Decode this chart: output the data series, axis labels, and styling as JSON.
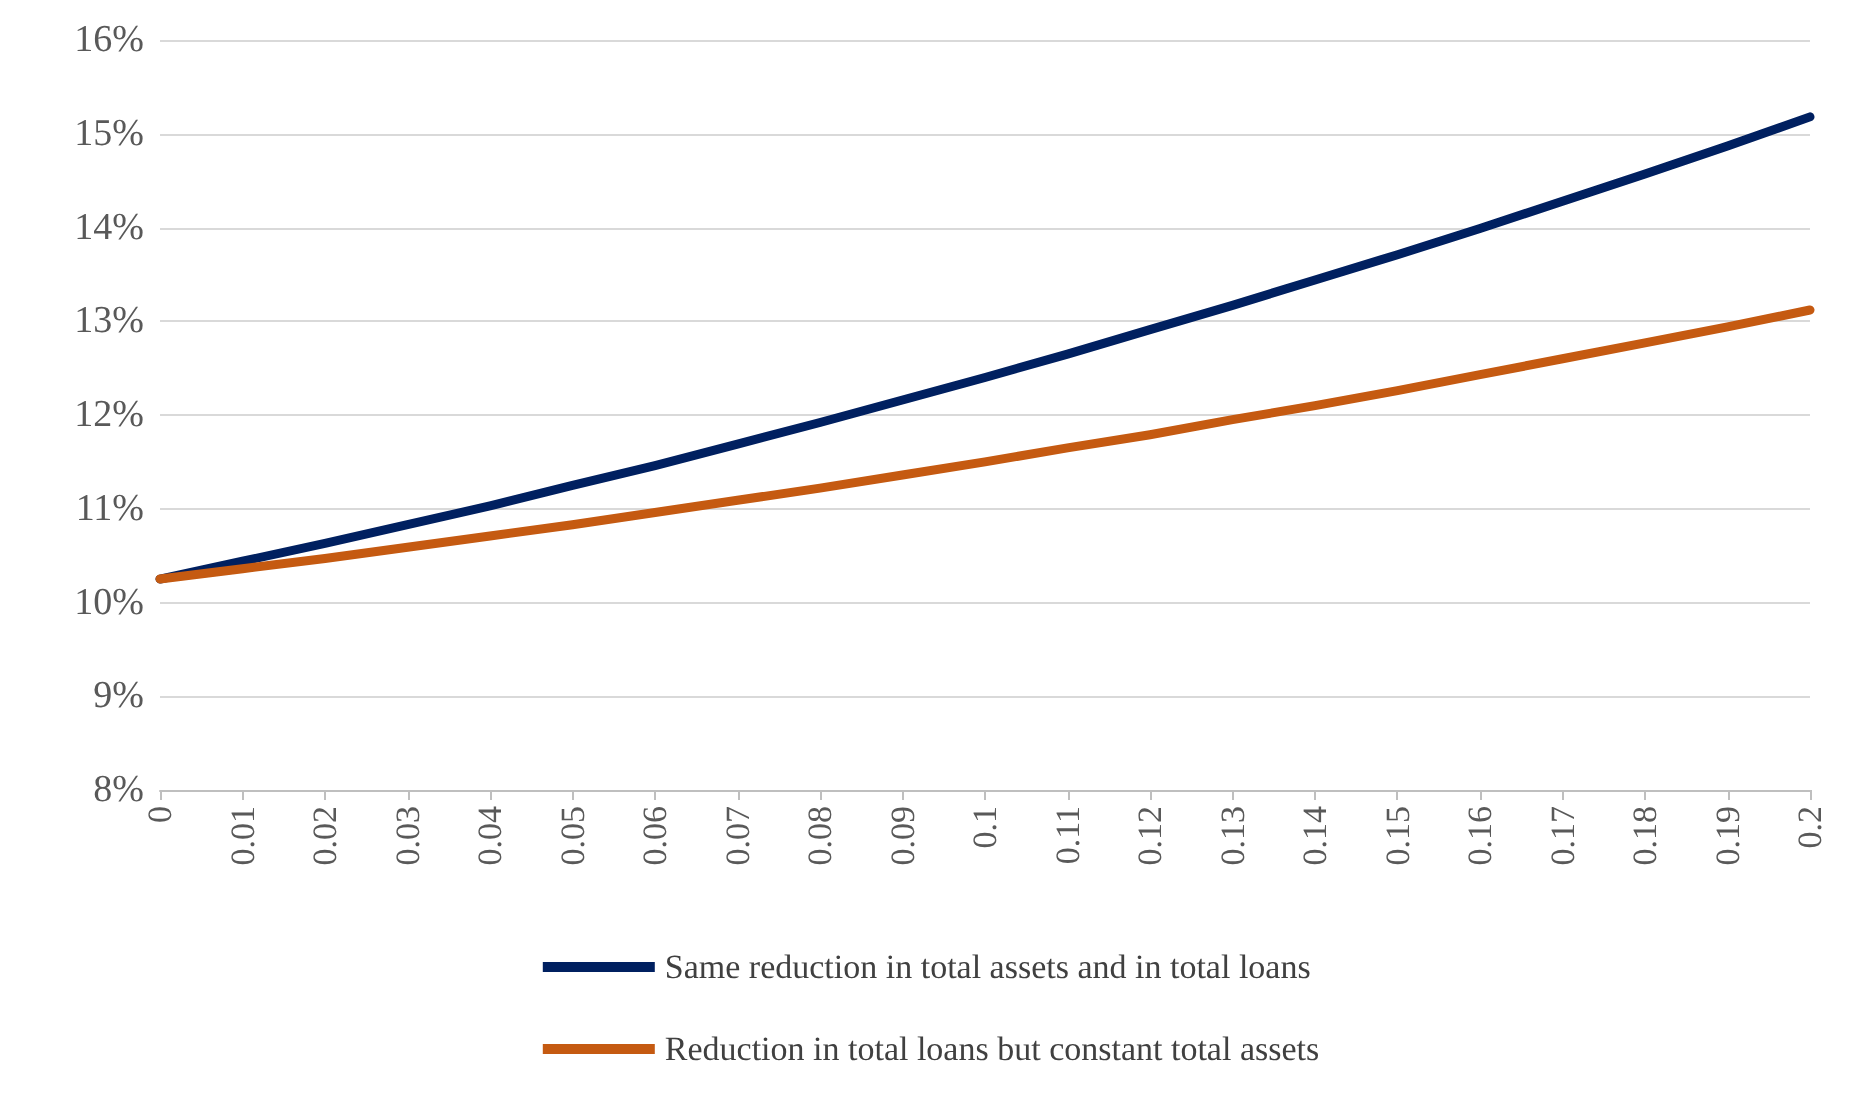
{
  "chart_data": {
    "type": "line",
    "x": [
      0,
      0.01,
      0.02,
      0.03,
      0.04,
      0.05,
      0.06,
      0.07,
      0.08,
      0.09,
      0.1,
      0.11,
      0.12,
      0.13,
      0.14,
      0.15,
      0.16,
      0.17,
      0.18,
      0.19,
      0.2
    ],
    "series": [
      {
        "name": "Same reduction in total assets and in total loans",
        "color": "#002060",
        "values": [
          10.25,
          10.44,
          10.63,
          10.83,
          11.03,
          11.25,
          11.46,
          11.69,
          11.92,
          12.16,
          12.4,
          12.65,
          12.91,
          13.17,
          13.44,
          13.71,
          13.99,
          14.28,
          14.57,
          14.87,
          15.18
        ]
      },
      {
        "name": "Reduction in total loans but constant total assets",
        "color": "#c55a11",
        "values": [
          10.25,
          10.36,
          10.47,
          10.59,
          10.71,
          10.83,
          10.96,
          11.09,
          11.22,
          11.36,
          11.5,
          11.65,
          11.79,
          11.95,
          12.1,
          12.26,
          12.43,
          12.6,
          12.77,
          12.94,
          13.12
        ]
      }
    ],
    "xlim": [
      0,
      0.2
    ],
    "xticks": [
      0,
      0.01,
      0.02,
      0.03,
      0.04,
      0.05,
      0.06,
      0.07,
      0.08,
      0.09,
      0.1,
      0.11,
      0.12,
      0.13,
      0.14,
      0.15,
      0.16,
      0.17,
      0.18,
      0.19,
      0.2
    ],
    "ylim": [
      8,
      16
    ],
    "yticks": [
      {
        "value": 8,
        "label": "8%"
      },
      {
        "value": 9,
        "label": "9%"
      },
      {
        "value": 10,
        "label": "10%"
      },
      {
        "value": 11,
        "label": "11%"
      },
      {
        "value": 12,
        "label": "12%"
      },
      {
        "value": 13,
        "label": "13%"
      },
      {
        "value": 14,
        "label": "14%"
      },
      {
        "value": 15,
        "label": "15%"
      },
      {
        "value": 16,
        "label": "16%"
      }
    ],
    "grid": "y",
    "legend": "bottom",
    "marker": "none",
    "line_style": "solid"
  }
}
